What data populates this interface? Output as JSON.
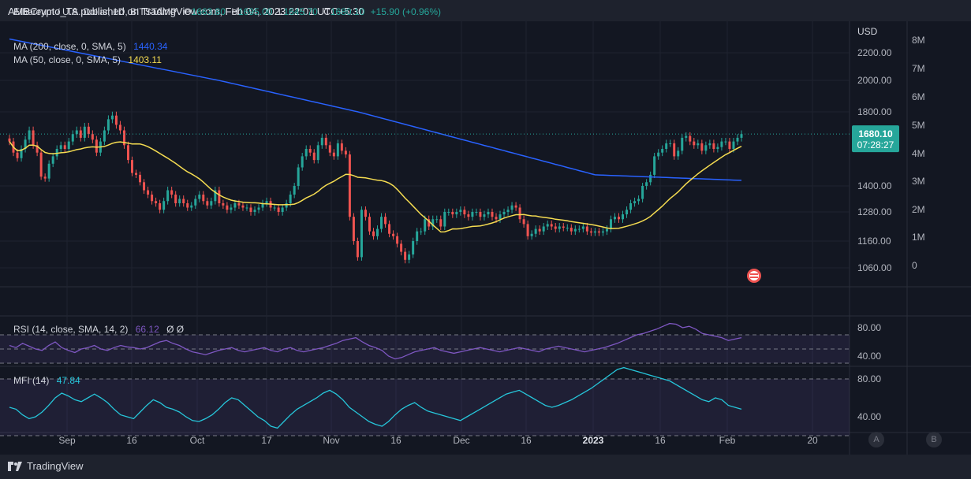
{
  "header": {
    "publish_line": "AMBCrypto_TA published on TradingView.com, Feb 04, 2023 22:01 UTC+5:30"
  },
  "legend": {
    "symbol": "Ethereum / U.S. Dollar, 1D, BITSTAMP",
    "o_label": "O",
    "o_value": "1663.80",
    "h_label": "H",
    "h_value": "1695.00",
    "l_label": "L",
    "l_value": "1645.70",
    "c_label": "C",
    "c_value": "1680.10",
    "change": "+15.90 (+0.96%)",
    "ma200_label": "MA (200, close, 0, SMA, 5)",
    "ma200_value": "1440.34",
    "ma50_label": "MA (50, close, 0, SMA, 5)",
    "ma50_value": "1403.11",
    "rsi_label": "RSI (14, close, SMA, 14, 2)",
    "rsi_value": "66.12",
    "rsi_extra": "Ø  Ø",
    "mfi_label": "MFI (14)",
    "mfi_value": "47.84"
  },
  "price_axis": {
    "currency": "USD",
    "ticks": [
      "2200.00",
      "2000.00",
      "1800.00",
      "1400.00",
      "1280.00",
      "1160.00",
      "1060.00"
    ],
    "last_price": "1680.10",
    "countdown": "07:28:27"
  },
  "volume_axis": {
    "ticks": [
      "8M",
      "7M",
      "6M",
      "5M",
      "4M",
      "3M",
      "2M",
      "1M",
      "0"
    ]
  },
  "rsi_axis": {
    "ticks": [
      "80.00",
      "40.00"
    ]
  },
  "mfi_axis": {
    "ticks": [
      "80.00",
      "40.00"
    ]
  },
  "time_axis": {
    "labels": [
      "Sep",
      "16",
      "Oct",
      "17",
      "Nov",
      "16",
      "Dec",
      "16",
      "2023",
      "16",
      "Feb",
      "20"
    ]
  },
  "footer": {
    "brand": "TradingView",
    "btn_a": "A",
    "btn_b": "B"
  },
  "colors": {
    "up": "#26a69a",
    "down": "#ef5350",
    "ma200": "#2962ff",
    "ma50": "#f5dc51",
    "rsi": "#7e57c2",
    "mfi": "#26c6da",
    "background": "#131722"
  },
  "chart_data": {
    "type": "candlestick",
    "symbol": "ETHUSD",
    "interval": "1D",
    "price_ylim": [
      1000,
      2300
    ],
    "closes": [
      1640,
      1580,
      1550,
      1600,
      1650,
      1700,
      1620,
      1580,
      1450,
      1440,
      1520,
      1560,
      1600,
      1620,
      1600,
      1640,
      1680,
      1700,
      1660,
      1720,
      1680,
      1650,
      1580,
      1640,
      1700,
      1760,
      1780,
      1730,
      1700,
      1620,
      1540,
      1470,
      1460,
      1420,
      1380,
      1360,
      1330,
      1320,
      1290,
      1330,
      1380,
      1360,
      1320,
      1340,
      1320,
      1300,
      1310,
      1340,
      1360,
      1330,
      1310,
      1330,
      1380,
      1320,
      1310,
      1290,
      1300,
      1320,
      1310,
      1300,
      1300,
      1280,
      1290,
      1300,
      1320,
      1330,
      1300,
      1300,
      1280,
      1300,
      1320,
      1360,
      1400,
      1500,
      1560,
      1600,
      1580,
      1540,
      1620,
      1660,
      1620,
      1580,
      1560,
      1630,
      1590,
      1570,
      1260,
      1160,
      1100,
      1290,
      1260,
      1200,
      1180,
      1210,
      1260,
      1230,
      1190,
      1180,
      1150,
      1120,
      1090,
      1110,
      1160,
      1200,
      1200,
      1250,
      1220,
      1250,
      1250,
      1220,
      1280,
      1280,
      1270,
      1280,
      1290,
      1270,
      1260,
      1280,
      1280,
      1260,
      1270,
      1280,
      1260,
      1250,
      1270,
      1280,
      1290,
      1310,
      1300,
      1250,
      1230,
      1180,
      1190,
      1210,
      1200,
      1220,
      1230,
      1220,
      1210,
      1220,
      1215,
      1215,
      1200,
      1210,
      1210,
      1220,
      1200,
      1195,
      1200,
      1195,
      1200,
      1210,
      1250,
      1260,
      1250,
      1270,
      1290,
      1320,
      1330,
      1340,
      1400,
      1420,
      1460,
      1560,
      1580,
      1600,
      1630,
      1630,
      1560,
      1590,
      1660,
      1670,
      1640,
      1620,
      1630,
      1590,
      1620,
      1630,
      1600,
      1610,
      1640,
      1640,
      1600,
      1640,
      1660,
      1680
    ],
    "ma200_current": 1440.34,
    "ma50_current": 1403.11,
    "rsi": [
      55,
      52,
      58,
      54,
      50,
      48,
      55,
      60,
      52,
      48,
      45,
      50,
      52,
      55,
      50,
      48,
      52,
      55,
      53,
      52,
      50,
      52,
      56,
      60,
      62,
      58,
      55,
      50,
      46,
      44,
      42,
      45,
      48,
      50,
      52,
      48,
      46,
      48,
      50,
      52,
      48,
      46,
      50,
      52,
      48,
      46,
      48,
      50,
      52,
      55,
      58,
      62,
      64,
      66,
      60,
      55,
      52,
      48,
      40,
      36,
      38,
      42,
      46,
      48,
      50,
      52,
      48,
      46,
      44,
      46,
      48,
      50,
      52,
      50,
      48,
      46,
      48,
      50,
      52,
      50,
      48,
      46,
      50,
      52,
      54,
      52,
      50,
      48,
      46,
      48,
      50,
      52,
      55,
      58,
      62,
      66,
      70,
      72,
      75,
      78,
      82,
      86,
      85,
      80,
      82,
      78,
      72,
      70,
      68,
      66,
      62,
      64,
      66
    ],
    "rsi_value": 66.12,
    "mfi": [
      50,
      48,
      42,
      38,
      40,
      45,
      52,
      60,
      65,
      62,
      58,
      56,
      60,
      64,
      60,
      55,
      48,
      42,
      40,
      38,
      45,
      52,
      58,
      55,
      50,
      48,
      45,
      40,
      36,
      35,
      38,
      42,
      48,
      55,
      60,
      58,
      52,
      46,
      40,
      36,
      30,
      28,
      35,
      42,
      48,
      52,
      56,
      60,
      65,
      68,
      64,
      58,
      50,
      45,
      40,
      35,
      32,
      30,
      35,
      42,
      48,
      52,
      55,
      50,
      46,
      44,
      42,
      40,
      38,
      36,
      40,
      44,
      48,
      52,
      56,
      60,
      64,
      66,
      68,
      64,
      60,
      56,
      52,
      50,
      52,
      55,
      58,
      62,
      66,
      70,
      75,
      80,
      85,
      90,
      92,
      90,
      88,
      86,
      84,
      82,
      80,
      78,
      74,
      70,
      66,
      62,
      58,
      56,
      60,
      58,
      52,
      50,
      48
    ],
    "mfi_value": 47.84,
    "volume_ylim": [
      0,
      8000000
    ]
  }
}
